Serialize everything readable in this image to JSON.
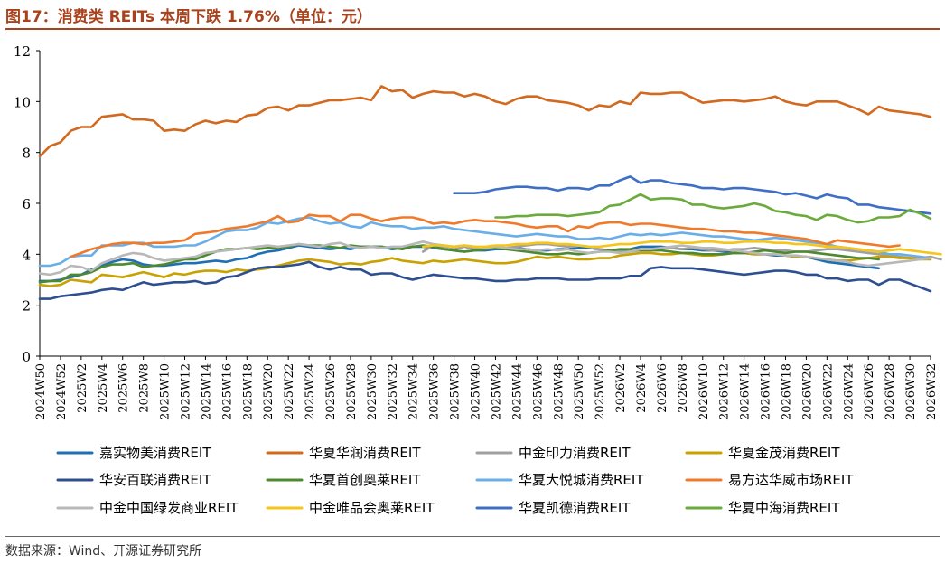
{
  "title": "图17：消费类 REITs 本周下跌 1.76%（单位：元）",
  "source": "数据来源：Wind、开源证券研究所",
  "chart_data": {
    "type": "line",
    "ylim": [
      0,
      12
    ],
    "yticks": [
      0,
      2,
      4,
      6,
      8,
      10,
      12
    ],
    "x_ticks_shown": [
      "2024W50",
      "2024W52",
      "2025W2",
      "2025W4",
      "2025W6",
      "2025W8",
      "2025W10",
      "2025W12",
      "2025W14",
      "2025W16",
      "2025W18",
      "2025W20",
      "2025W22",
      "2025W24",
      "2025W26",
      "2025W28",
      "2025W30",
      "2025W32",
      "2025W34",
      "2025W36",
      "2025W38",
      "2025W40",
      "2025W42",
      "2025W44",
      "2025W46",
      "2025W48",
      "2025W50",
      "2025W52",
      "2026W2",
      "2026W4",
      "2026W6",
      "2026W8",
      "2026W10",
      "2026W12",
      "2026W14",
      "2026W16",
      "2026W18",
      "2026W20",
      "2026W22",
      "2026W24",
      "2026W26",
      "2026W28",
      "2026W30",
      "2026W32"
    ],
    "legend_position": "bottom",
    "series": [
      {
        "name": "嘉实物美消费REIT",
        "color": "#1f6fb5",
        "start_index": 0,
        "values": [
          2.95,
          2.95,
          3.0,
          3.1,
          3.2,
          3.4,
          3.55,
          3.7,
          3.8,
          3.75,
          3.6,
          3.55,
          3.55,
          3.6,
          3.65,
          3.65,
          3.7,
          3.75,
          3.7,
          3.8,
          3.85,
          4.0,
          4.1,
          4.15,
          4.25,
          4.35,
          4.3,
          4.25,
          4.2,
          4.25,
          4.2,
          4.3,
          4.3,
          4.3,
          4.2,
          4.25,
          4.3,
          4.3,
          4.25,
          4.2,
          4.15,
          4.1,
          4.15,
          4.15,
          4.2,
          4.2,
          4.25,
          4.2,
          4.15,
          4.15,
          4.2,
          4.2,
          4.25,
          4.25,
          4.2,
          4.15,
          4.15,
          4.2,
          4.3,
          4.3,
          4.3,
          4.25,
          4.2,
          4.2,
          4.15,
          4.15,
          4.1,
          4.05,
          4.05,
          4.0,
          4.0,
          3.95,
          3.95,
          3.9,
          3.9,
          3.8,
          3.7,
          3.65,
          3.6,
          3.55,
          3.5,
          3.45
        ]
      },
      {
        "name": "华夏华润消费REIT",
        "color": "#d2691e",
        "start_index": 0,
        "values": [
          7.85,
          8.25,
          8.4,
          8.85,
          9.0,
          9.0,
          9.4,
          9.45,
          9.5,
          9.3,
          9.3,
          9.25,
          8.85,
          8.9,
          8.85,
          9.1,
          9.25,
          9.15,
          9.25,
          9.2,
          9.45,
          9.5,
          9.75,
          9.8,
          9.65,
          9.85,
          9.85,
          9.95,
          10.05,
          10.05,
          10.1,
          10.15,
          10.05,
          10.6,
          10.4,
          10.45,
          10.15,
          10.3,
          10.4,
          10.35,
          10.35,
          10.2,
          10.3,
          10.2,
          10.0,
          9.9,
          10.1,
          10.2,
          10.2,
          10.05,
          10.0,
          9.95,
          9.85,
          9.65,
          9.85,
          9.8,
          10.0,
          9.9,
          10.35,
          10.3,
          10.3,
          10.35,
          10.35,
          10.15,
          9.95,
          10.0,
          10.05,
          10.05,
          10.0,
          10.05,
          10.1,
          10.2,
          10.0,
          9.9,
          9.85,
          10.0,
          10.0,
          10.0,
          9.85,
          9.7,
          9.5,
          9.8,
          9.65,
          9.6,
          9.55,
          9.5,
          9.4
        ]
      },
      {
        "name": "中金印力消费REIT",
        "color": "#a0a0a0",
        "start_index": 37,
        "values": [
          4.1,
          4.35,
          4.25,
          4.2,
          4.3,
          4.2,
          4.25,
          4.3,
          4.25,
          4.3,
          4.35,
          4.4,
          4.4,
          4.35,
          4.3,
          4.35,
          4.3,
          4.2,
          4.15,
          4.1,
          4.1,
          4.15,
          4.2,
          4.25,
          4.25,
          4.2,
          4.25,
          4.2,
          4.15,
          4.15,
          4.2,
          4.2,
          4.25,
          4.2,
          4.15,
          4.15,
          4.1,
          4.1,
          4.15,
          4.2,
          4.2,
          4.15,
          4.1,
          4.05,
          4.0,
          3.95,
          3.9,
          3.85,
          3.85,
          3.9,
          3.8
        ]
      },
      {
        "name": "华夏金茂消费REIT",
        "color": "#c9a100",
        "start_index": 0,
        "values": [
          2.8,
          2.75,
          2.8,
          3.0,
          2.95,
          2.9,
          3.2,
          3.15,
          3.1,
          3.2,
          3.3,
          3.2,
          3.1,
          3.25,
          3.2,
          3.3,
          3.35,
          3.35,
          3.3,
          3.4,
          3.35,
          3.4,
          3.45,
          3.55,
          3.65,
          3.75,
          3.8,
          3.75,
          3.7,
          3.6,
          3.65,
          3.6,
          3.7,
          3.75,
          3.85,
          3.75,
          3.7,
          3.65,
          3.75,
          3.7,
          3.75,
          3.8,
          3.75,
          3.7,
          3.65,
          3.65,
          3.7,
          3.8,
          3.9,
          3.85,
          3.9,
          3.85,
          3.8,
          3.8,
          3.85,
          3.85,
          3.95,
          4.0,
          4.05,
          4.05,
          4.0,
          4.0,
          4.05,
          4.0,
          3.95,
          3.95,
          4.0,
          4.05,
          4.05,
          4.0,
          4.0,
          4.0,
          3.95,
          3.9,
          3.9,
          3.85,
          3.8,
          3.75,
          3.75,
          3.8,
          3.85,
          3.9,
          3.9,
          3.85,
          3.85,
          3.8,
          3.8
        ]
      },
      {
        "name": "华安百联消费REIT",
        "color": "#2e4f8f",
        "start_index": 0,
        "values": [
          2.25,
          2.25,
          2.35,
          2.4,
          2.45,
          2.5,
          2.6,
          2.65,
          2.6,
          2.75,
          2.9,
          2.8,
          2.85,
          2.9,
          2.9,
          2.95,
          2.85,
          2.9,
          3.1,
          3.15,
          3.3,
          3.45,
          3.5,
          3.5,
          3.55,
          3.6,
          3.7,
          3.5,
          3.4,
          3.5,
          3.4,
          3.4,
          3.2,
          3.25,
          3.25,
          3.1,
          3.0,
          3.1,
          3.2,
          3.15,
          3.1,
          3.05,
          3.05,
          3.0,
          2.95,
          2.95,
          3.0,
          3.0,
          3.05,
          3.05,
          3.05,
          3.0,
          3.0,
          3.0,
          3.05,
          3.05,
          3.05,
          3.15,
          3.15,
          3.45,
          3.5,
          3.45,
          3.45,
          3.45,
          3.4,
          3.35,
          3.3,
          3.25,
          3.2,
          3.25,
          3.3,
          3.35,
          3.35,
          3.3,
          3.2,
          3.2,
          3.05,
          3.05,
          2.95,
          3.0,
          3.0,
          2.8,
          3.0,
          3.0,
          2.85,
          2.7,
          2.55
        ]
      },
      {
        "name": "华夏首创奥莱REIT",
        "color": "#4d8a2e",
        "start_index": 0,
        "values": [
          2.9,
          2.95,
          2.95,
          3.2,
          3.2,
          3.3,
          3.5,
          3.6,
          3.6,
          3.65,
          3.5,
          3.55,
          3.6,
          3.7,
          3.8,
          3.8,
          3.95,
          4.1,
          4.2,
          4.2,
          4.25,
          4.2,
          4.25,
          4.25,
          4.3,
          4.4,
          4.35,
          4.35,
          4.3,
          4.25,
          4.35,
          4.3,
          4.3,
          4.3,
          4.25,
          4.2,
          4.3,
          4.35,
          4.3,
          4.2,
          4.15,
          4.1,
          4.15,
          4.2,
          4.25,
          4.2,
          4.15,
          4.1,
          4.05,
          4.0,
          4.0,
          4.05,
          4.0,
          4.05,
          4.1,
          4.15,
          4.2,
          4.2,
          4.15,
          4.15,
          4.15,
          4.1,
          4.05,
          4.05,
          4.0,
          4.0,
          4.0,
          4.05,
          4.05,
          4.1,
          4.15,
          4.1,
          4.05,
          4.1,
          4.1,
          4.05,
          4.0,
          3.95,
          3.9,
          3.85,
          3.85,
          3.8
        ]
      },
      {
        "name": "华夏大悦城消费REIT",
        "color": "#6aaee8",
        "start_index": 0,
        "values": [
          3.55,
          3.55,
          3.65,
          3.9,
          3.95,
          3.95,
          4.35,
          4.35,
          4.35,
          4.45,
          4.45,
          4.3,
          4.3,
          4.3,
          4.35,
          4.35,
          4.5,
          4.7,
          4.9,
          4.95,
          4.95,
          5.05,
          5.25,
          5.2,
          5.3,
          5.4,
          5.45,
          5.3,
          5.2,
          5.25,
          5.1,
          5.05,
          5.25,
          5.15,
          5.1,
          5.1,
          5.0,
          5.05,
          5.05,
          5.1,
          5.0,
          4.95,
          4.9,
          4.85,
          4.8,
          4.75,
          4.7,
          4.75,
          4.8,
          4.75,
          4.7,
          4.7,
          4.6,
          4.6,
          4.65,
          4.6,
          4.7,
          4.8,
          4.75,
          4.8,
          4.75,
          4.8,
          4.85,
          4.8,
          4.75,
          4.7,
          4.7,
          4.65,
          4.6,
          4.55,
          4.6,
          4.65,
          4.6,
          4.55,
          4.5,
          4.45,
          4.4,
          4.3,
          4.25,
          4.2,
          4.15,
          4.1,
          4.0,
          4.0,
          3.95,
          3.9,
          3.85
        ]
      },
      {
        "name": "易方达华威市场REIT",
        "color": "#f07a2a",
        "start_index": 3,
        "values": [
          3.9,
          4.05,
          4.2,
          4.3,
          4.4,
          4.45,
          4.45,
          4.4,
          4.45,
          4.45,
          4.5,
          4.55,
          4.8,
          4.85,
          4.9,
          5.0,
          5.05,
          5.1,
          5.2,
          5.3,
          5.5,
          5.25,
          5.3,
          5.55,
          5.5,
          5.5,
          5.3,
          5.55,
          5.55,
          5.4,
          5.3,
          5.4,
          5.45,
          5.45,
          5.35,
          5.2,
          5.25,
          5.2,
          5.3,
          5.35,
          5.3,
          5.3,
          5.25,
          5.2,
          5.1,
          5.05,
          5.1,
          5.1,
          4.9,
          5.1,
          5.05,
          5.2,
          5.25,
          5.25,
          5.15,
          5.2,
          5.2,
          5.15,
          5.1,
          5.05,
          5.0,
          5.0,
          4.95,
          4.9,
          4.9,
          4.85,
          4.85,
          4.8,
          4.75,
          4.7,
          4.65,
          4.6,
          4.5,
          4.4,
          4.55,
          4.5,
          4.45,
          4.4,
          4.35,
          4.3,
          4.35
        ]
      },
      {
        "name": "中金中国绿发商业REIT",
        "color": "#b8b8b8",
        "start_index": 0,
        "values": [
          3.25,
          3.2,
          3.3,
          3.55,
          3.5,
          3.35,
          3.65,
          3.8,
          3.95,
          4.05,
          4.0,
          3.85,
          3.75,
          3.8,
          3.85,
          3.9,
          4.05,
          4.1,
          4.15,
          4.2,
          4.25,
          4.3,
          4.35,
          4.3,
          4.35,
          4.4,
          4.35,
          4.3,
          4.4,
          4.45,
          4.3,
          4.25,
          4.3,
          4.25,
          4.3,
          4.3,
          4.4,
          4.5,
          4.4,
          4.35,
          4.3,
          4.35,
          4.3,
          4.25,
          4.3,
          4.25,
          4.2,
          4.2,
          4.15,
          4.2,
          4.15,
          4.2,
          4.1,
          4.05,
          4.1,
          4.1,
          4.05,
          4.1,
          4.2,
          4.2,
          4.25,
          4.3,
          4.35,
          4.3,
          4.25,
          4.25,
          4.2,
          4.15,
          4.1,
          4.05,
          4.0,
          4.0,
          3.95,
          3.95,
          3.9,
          3.85,
          3.8,
          3.75,
          3.7,
          3.6,
          3.55,
          3.6,
          3.65,
          3.7,
          3.75,
          3.8,
          3.85
        ]
      },
      {
        "name": "中金唯品会奥莱REIT",
        "color": "#f5c518",
        "start_index": 37,
        "values": [
          4.3,
          4.35,
          4.35,
          4.3,
          4.35,
          4.3,
          4.3,
          4.35,
          4.35,
          4.4,
          4.4,
          4.45,
          4.45,
          4.4,
          4.4,
          4.35,
          4.3,
          4.3,
          4.35,
          4.4,
          4.4,
          4.45,
          4.5,
          4.5,
          4.5,
          4.45,
          4.45,
          4.5,
          4.5,
          4.45,
          4.45,
          4.5,
          4.5,
          4.5,
          4.45,
          4.45,
          4.4,
          4.4,
          4.35,
          4.3,
          4.3,
          4.25,
          4.2,
          4.15,
          4.1,
          4.15,
          4.2,
          4.15,
          4.1,
          4.05,
          4.0
        ]
      },
      {
        "name": "华夏凯德消费REIT",
        "color": "#3f6fc4",
        "start_index": 40,
        "values": [
          6.4,
          6.4,
          6.4,
          6.45,
          6.55,
          6.6,
          6.65,
          6.65,
          6.6,
          6.6,
          6.5,
          6.6,
          6.6,
          6.55,
          6.7,
          6.7,
          6.9,
          7.05,
          6.8,
          6.9,
          6.9,
          6.8,
          6.75,
          6.7,
          6.6,
          6.6,
          6.55,
          6.6,
          6.6,
          6.55,
          6.5,
          6.45,
          6.35,
          6.4,
          6.3,
          6.2,
          6.35,
          6.25,
          6.2,
          5.95,
          5.95,
          5.85,
          5.8,
          5.75,
          5.7,
          5.65,
          5.6
        ]
      },
      {
        "name": "华夏中海消费REIT",
        "color": "#6aab3b",
        "start_index": 44,
        "values": [
          5.45,
          5.45,
          5.5,
          5.5,
          5.55,
          5.55,
          5.55,
          5.5,
          5.55,
          5.6,
          5.65,
          5.9,
          5.95,
          6.15,
          6.35,
          6.15,
          6.2,
          6.2,
          6.15,
          5.95,
          5.95,
          5.85,
          5.8,
          5.85,
          5.9,
          6.0,
          5.9,
          5.7,
          5.65,
          5.55,
          5.5,
          5.35,
          5.55,
          5.5,
          5.35,
          5.25,
          5.3,
          5.45,
          5.45,
          5.5,
          5.75,
          5.6,
          5.4
        ]
      }
    ]
  }
}
